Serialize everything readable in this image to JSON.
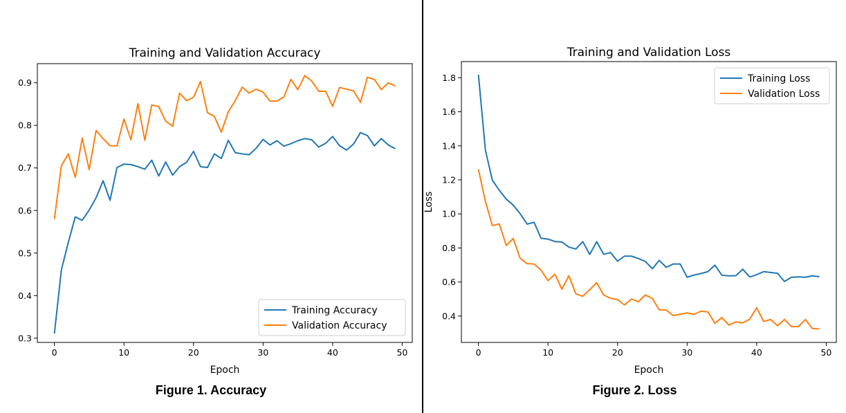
{
  "figures": [
    {
      "caption": "Figure 1. Accuracy"
    },
    {
      "caption": "Figure 2. Loss"
    }
  ],
  "chart_data": [
    {
      "type": "line",
      "title": "Training and Validation Accuracy",
      "xlabel": "Epoch",
      "ylabel": "",
      "xlim": [
        -2.45,
        51.45
      ],
      "ylim": [
        0.29,
        0.945
      ],
      "xticks": [
        0,
        10,
        20,
        30,
        40,
        50
      ],
      "yticks": [
        0.3,
        0.4,
        0.5,
        0.6,
        0.7,
        0.8,
        0.9
      ],
      "ytick_decimals": 1,
      "legend_position": "lower-right",
      "x": [
        0,
        1,
        2,
        3,
        4,
        5,
        6,
        7,
        8,
        9,
        10,
        11,
        12,
        13,
        14,
        15,
        16,
        17,
        18,
        19,
        20,
        21,
        22,
        23,
        24,
        25,
        26,
        27,
        28,
        29,
        30,
        31,
        32,
        33,
        34,
        35,
        36,
        37,
        38,
        39,
        40,
        41,
        42,
        43,
        44,
        45,
        46,
        47,
        48,
        49
      ],
      "series": [
        {
          "name": "Training Accuracy",
          "color": "#1f77b4",
          "values": [
            0.311,
            0.46,
            0.525,
            0.585,
            0.577,
            0.601,
            0.63,
            0.67,
            0.624,
            0.701,
            0.709,
            0.708,
            0.703,
            0.697,
            0.718,
            0.681,
            0.714,
            0.683,
            0.703,
            0.713,
            0.739,
            0.703,
            0.701,
            0.733,
            0.722,
            0.765,
            0.736,
            0.733,
            0.731,
            0.746,
            0.767,
            0.754,
            0.764,
            0.751,
            0.757,
            0.764,
            0.769,
            0.766,
            0.749,
            0.758,
            0.774,
            0.752,
            0.742,
            0.756,
            0.783,
            0.776,
            0.752,
            0.769,
            0.754,
            0.745
          ]
        },
        {
          "name": "Validation Accuracy",
          "color": "#ff7f0e",
          "values": [
            0.58,
            0.705,
            0.733,
            0.678,
            0.77,
            0.696,
            0.788,
            0.769,
            0.752,
            0.752,
            0.815,
            0.766,
            0.851,
            0.765,
            0.848,
            0.844,
            0.81,
            0.798,
            0.876,
            0.858,
            0.866,
            0.903,
            0.83,
            0.821,
            0.784,
            0.832,
            0.858,
            0.89,
            0.876,
            0.885,
            0.878,
            0.857,
            0.857,
            0.867,
            0.908,
            0.884,
            0.917,
            0.904,
            0.88,
            0.88,
            0.845,
            0.889,
            0.885,
            0.881,
            0.854,
            0.913,
            0.908,
            0.884,
            0.9,
            0.893
          ]
        }
      ]
    },
    {
      "type": "line",
      "title": "Training and Validation Loss",
      "xlabel": "Epoch",
      "ylabel": "Loss",
      "xlim": [
        -2.45,
        51.45
      ],
      "ylim": [
        0.245,
        1.895
      ],
      "xticks": [
        0,
        10,
        20,
        30,
        40,
        50
      ],
      "yticks": [
        0.4,
        0.6,
        0.8,
        1.0,
        1.2,
        1.4,
        1.6,
        1.8
      ],
      "ytick_decimals": 1,
      "legend_position": "upper-right",
      "x": [
        0,
        1,
        2,
        3,
        4,
        5,
        6,
        7,
        8,
        9,
        10,
        11,
        12,
        13,
        14,
        15,
        16,
        17,
        18,
        19,
        20,
        21,
        22,
        23,
        24,
        25,
        26,
        27,
        28,
        29,
        30,
        31,
        32,
        33,
        34,
        35,
        36,
        37,
        38,
        39,
        40,
        41,
        42,
        43,
        44,
        45,
        46,
        47,
        48,
        49
      ],
      "series": [
        {
          "name": "Training Loss",
          "color": "#1f77b4",
          "values": [
            1.818,
            1.375,
            1.198,
            1.139,
            1.087,
            1.052,
            1.001,
            0.94,
            0.951,
            0.857,
            0.852,
            0.838,
            0.835,
            0.805,
            0.794,
            0.837,
            0.762,
            0.837,
            0.763,
            0.773,
            0.722,
            0.752,
            0.752,
            0.738,
            0.721,
            0.678,
            0.727,
            0.686,
            0.706,
            0.706,
            0.628,
            0.641,
            0.65,
            0.661,
            0.699,
            0.64,
            0.636,
            0.637,
            0.675,
            0.63,
            0.643,
            0.661,
            0.656,
            0.651,
            0.603,
            0.628,
            0.63,
            0.628,
            0.636,
            0.631
          ]
        },
        {
          "name": "Validation Loss",
          "color": "#ff7f0e",
          "values": [
            1.262,
            1.074,
            0.932,
            0.941,
            0.815,
            0.856,
            0.739,
            0.708,
            0.706,
            0.67,
            0.608,
            0.646,
            0.558,
            0.637,
            0.531,
            0.516,
            0.555,
            0.596,
            0.524,
            0.504,
            0.497,
            0.465,
            0.5,
            0.484,
            0.524,
            0.503,
            0.437,
            0.435,
            0.403,
            0.41,
            0.419,
            0.41,
            0.429,
            0.424,
            0.358,
            0.391,
            0.347,
            0.366,
            0.36,
            0.381,
            0.449,
            0.368,
            0.38,
            0.343,
            0.38,
            0.338,
            0.338,
            0.38,
            0.327,
            0.325
          ]
        }
      ]
    }
  ]
}
